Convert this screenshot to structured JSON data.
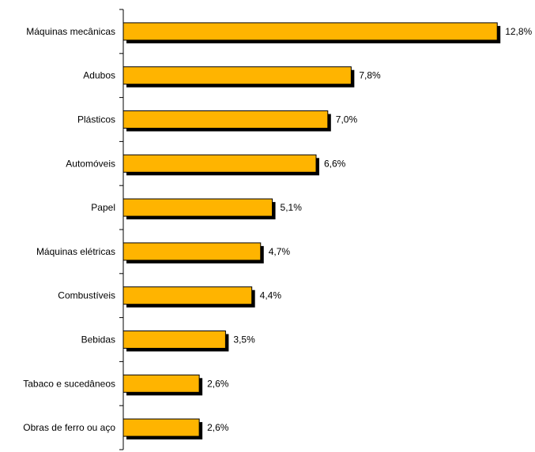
{
  "colors": {
    "bar_fill": "#ffb400",
    "bar_shadow": "#000000",
    "axis": "#000000",
    "text": "#000000"
  },
  "chart_data": {
    "type": "bar",
    "orientation": "horizontal",
    "title": "",
    "xlabel": "",
    "ylabel": "",
    "grid": false,
    "legend": "none",
    "categories": [
      "Máquinas mecânicas",
      "Adubos",
      "Plásticos",
      "Automóveis",
      "Papel",
      "Máquinas elétricas",
      "Combustíveis",
      "Bebidas",
      "Tabaco e sucedâneos",
      "Obras de ferro ou aço"
    ],
    "values": [
      12.8,
      7.8,
      7.0,
      6.6,
      5.1,
      4.7,
      4.4,
      3.5,
      2.6,
      2.6
    ],
    "value_labels": [
      "12,8%",
      "7,8%",
      "7,0%",
      "6,6%",
      "5,1%",
      "4,7%",
      "4,4%",
      "3,5%",
      "2,6%",
      "2,6%"
    ],
    "xlim": [
      0,
      13.2
    ]
  }
}
